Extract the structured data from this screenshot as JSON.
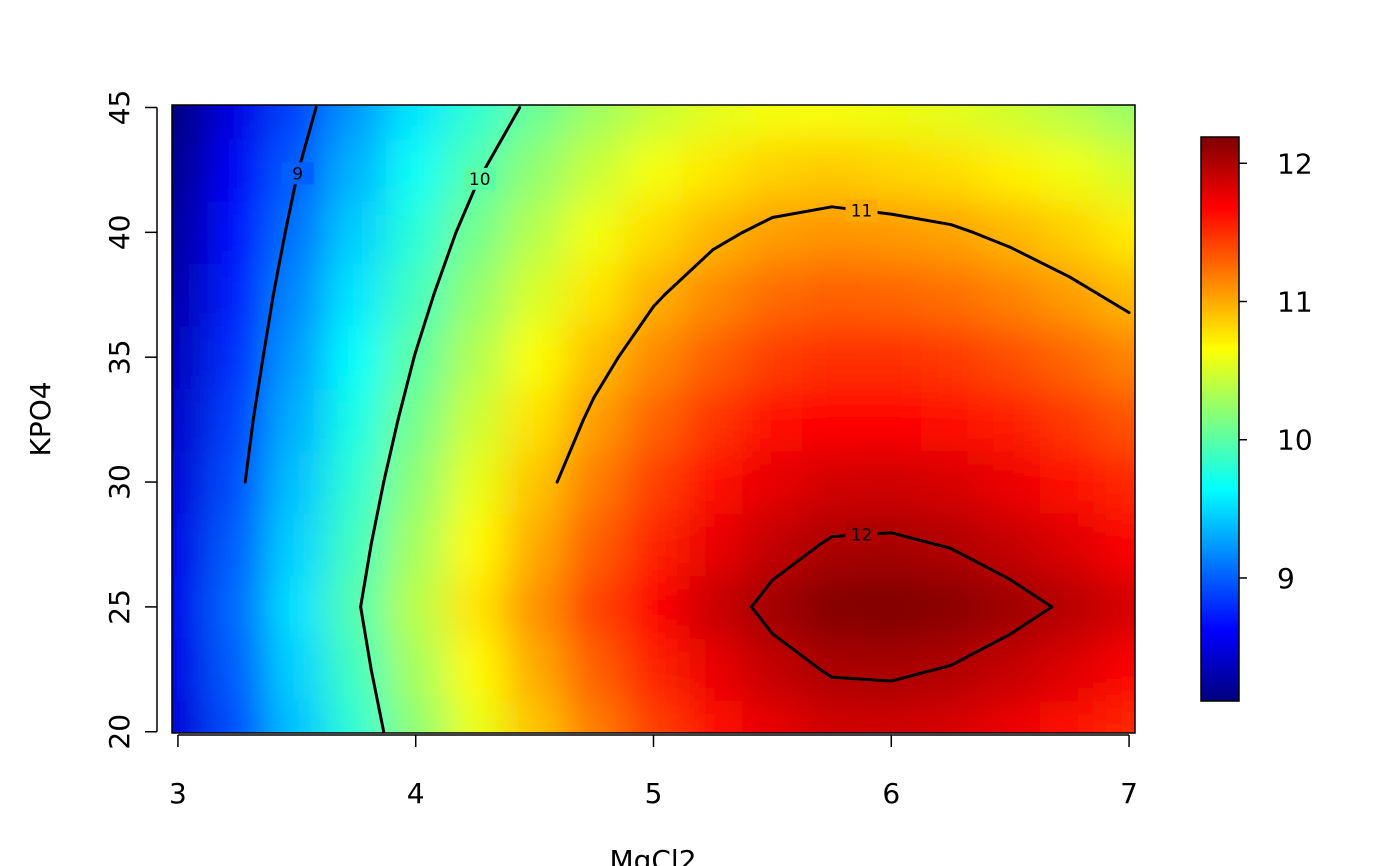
{
  "chart_data": {
    "type": "contour",
    "xlabel": "MgCl2",
    "ylabel": "KPO4",
    "x": [
      3,
      3.25,
      3.5,
      3.75,
      4,
      4.25,
      4.5,
      4.75,
      5,
      5.25,
      5.5,
      5.75,
      6,
      6.25,
      6.5,
      6.75,
      7
    ],
    "y": [
      20,
      22.5,
      25,
      27.5,
      30,
      32.5,
      35,
      37.5,
      40,
      42.5,
      45
    ],
    "z": [
      [
        8.46,
        8.94,
        9.4,
        9.82,
        10.21,
        10.57,
        10.89,
        11.18,
        11.42,
        11.62,
        11.77,
        11.86,
        11.87,
        11.83,
        11.75,
        11.65,
        11.53
      ],
      [
        8.51,
        9.0,
        9.47,
        9.9,
        10.3,
        10.67,
        11.0,
        11.3,
        11.55,
        11.76,
        11.92,
        12.02,
        12.03,
        11.99,
        11.91,
        11.81,
        11.69
      ],
      [
        8.55,
        9.05,
        9.53,
        9.97,
        10.38,
        10.76,
        11.1,
        11.41,
        11.67,
        11.89,
        12.06,
        12.17,
        12.19,
        12.15,
        12.07,
        11.97,
        11.85
      ],
      [
        8.51,
        9.0,
        9.47,
        9.9,
        10.3,
        10.67,
        11.0,
        11.3,
        11.55,
        11.76,
        11.92,
        12.02,
        12.03,
        11.99,
        11.91,
        11.81,
        11.69
      ],
      [
        8.46,
        8.94,
        9.4,
        9.82,
        10.21,
        10.57,
        10.89,
        11.18,
        11.42,
        11.62,
        11.77,
        11.86,
        11.87,
        11.83,
        11.75,
        11.65,
        11.53
      ],
      [
        8.41,
        8.88,
        9.33,
        9.74,
        10.11,
        10.46,
        10.77,
        11.05,
        11.28,
        11.47,
        11.61,
        11.68,
        11.68,
        11.64,
        11.56,
        11.46,
        11.34
      ],
      [
        8.36,
        8.81,
        9.25,
        9.65,
        10.01,
        10.35,
        10.65,
        10.91,
        11.13,
        11.3,
        11.43,
        11.5,
        11.49,
        11.45,
        11.37,
        11.27,
        11.15
      ],
      [
        8.3,
        8.74,
        9.17,
        9.55,
        9.9,
        10.23,
        10.51,
        10.76,
        10.97,
        11.13,
        11.25,
        11.3,
        11.28,
        11.24,
        11.16,
        11.06,
        10.94
      ],
      [
        8.24,
        8.67,
        9.08,
        9.45,
        9.79,
        10.1,
        10.37,
        10.61,
        10.8,
        10.95,
        11.05,
        11.09,
        11.07,
        11.03,
        10.95,
        10.85,
        10.73
      ],
      [
        8.18,
        8.59,
        8.99,
        9.34,
        9.67,
        9.96,
        10.22,
        10.44,
        10.62,
        10.75,
        10.84,
        10.87,
        10.83,
        10.79,
        10.71,
        10.61,
        10.49
      ],
      [
        8.11,
        8.51,
        8.89,
        9.23,
        9.54,
        9.82,
        10.06,
        10.27,
        10.43,
        10.55,
        10.62,
        10.63,
        10.59,
        10.55,
        10.47,
        10.37,
        10.25
      ]
    ],
    "contour_levels": [
      9,
      10,
      11,
      12
    ],
    "xlim": [
      2.975,
      7.025
    ],
    "ylim": [
      19.95,
      45.1
    ],
    "zlim": [
      8.11,
      12.19
    ],
    "xticks": [
      3,
      4,
      5,
      6,
      7
    ],
    "yticks": [
      20,
      25,
      30,
      35,
      40,
      45
    ],
    "zticks": [
      9,
      10,
      11,
      12
    ],
    "colormap": [
      "#00007F",
      "#0000FF",
      "#007FFF",
      "#00FFFF",
      "#7FFF7F",
      "#FFFF00",
      "#FF7F00",
      "#FF0000",
      "#7F0000"
    ],
    "contour_color": "#000000"
  }
}
